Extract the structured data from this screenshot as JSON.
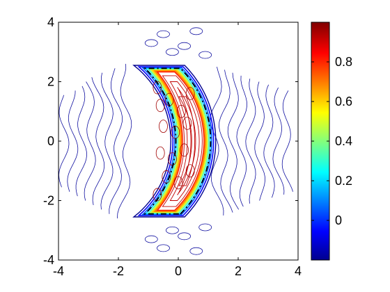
{
  "chart_data": {
    "type": "contour",
    "title": "",
    "xlabel": "",
    "ylabel": "",
    "xlim": [
      -4,
      4
    ],
    "ylim": [
      -4,
      4
    ],
    "x_ticks": [
      "-4",
      "-2",
      "0",
      "2",
      "4"
    ],
    "y_ticks": [
      "-4",
      "-2",
      "0",
      "2",
      "4"
    ],
    "grid": false,
    "colormap": "jet",
    "colorbar": {
      "range": [
        -0.2,
        1.0
      ],
      "ticks": [
        "0",
        "0.2",
        "0.4",
        "0.6",
        "0.8"
      ],
      "tick_values": [
        0,
        0.2,
        0.4,
        0.6,
        0.8
      ]
    },
    "dashed_boundary": {
      "color": "#000000",
      "style": "dash-dot"
    },
    "field": {
      "description_type": "crescent",
      "outer_arc_x_at_y0": 0.9,
      "inner_arc_x_at_y0": 0.1,
      "tips_y": [
        2.35,
        -2.35
      ],
      "tip_x": -1.2
    }
  },
  "colors": {
    "jet_stops": [
      "#00008f",
      "#0000ff",
      "#00ffff",
      "#ffff00",
      "#ff0000",
      "#800000"
    ]
  }
}
